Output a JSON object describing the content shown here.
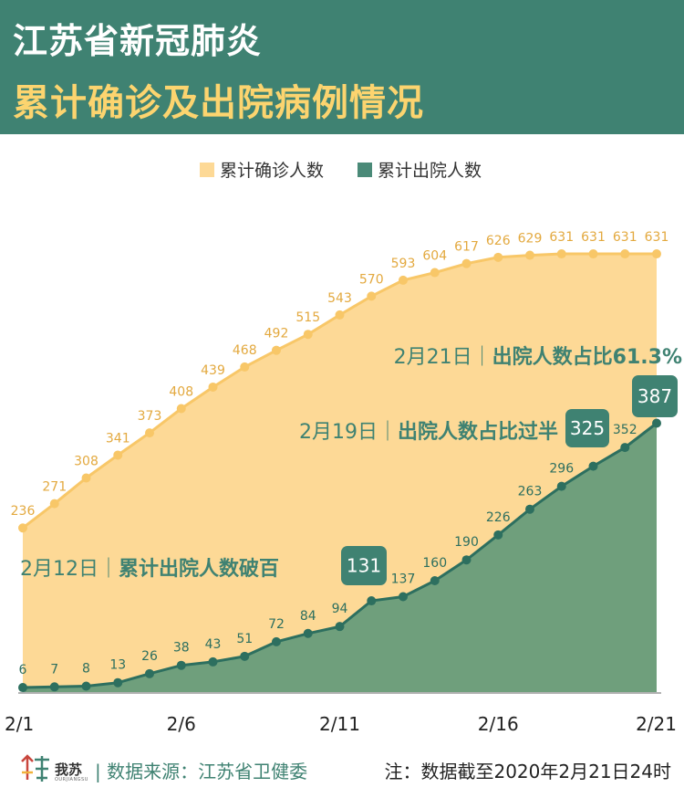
{
  "header": {
    "title_line1": "江苏省新冠肺炎",
    "title_line2": "累计确诊及出院病例情况"
  },
  "colors": {
    "header_bg": "#3f8272",
    "confirmed_fill": "#fdd996",
    "confirmed_line": "#f8c768",
    "confirmed_label": "#e3a93f",
    "discharged_fill": "#6f9f7c",
    "discharged_line": "#2d6f5f",
    "annotation_text": "#3f8272"
  },
  "chart_data": {
    "type": "area",
    "x": [
      "2/1",
      "2/2",
      "2/3",
      "2/4",
      "2/5",
      "2/6",
      "2/7",
      "2/8",
      "2/9",
      "2/10",
      "2/11",
      "2/12",
      "2/13",
      "2/14",
      "2/15",
      "2/16",
      "2/17",
      "2/18",
      "2/19",
      "2/20",
      "2/21"
    ],
    "xticks": [
      "2/1",
      "2/6",
      "2/11",
      "2/16",
      "2/21"
    ],
    "series": [
      {
        "name": "累计确诊人数",
        "values": [
          236,
          271,
          308,
          341,
          373,
          408,
          439,
          468,
          492,
          515,
          543,
          570,
          593,
          604,
          617,
          626,
          629,
          631,
          631,
          631,
          631
        ]
      },
      {
        "name": "累计出院人数",
        "values": [
          6,
          7,
          8,
          13,
          26,
          38,
          43,
          51,
          72,
          84,
          94,
          131,
          137,
          160,
          190,
          226,
          263,
          296,
          325,
          352,
          387
        ]
      }
    ],
    "legend_position": "top-center",
    "grid": false,
    "annotations": [
      {
        "date": "2/12",
        "label": "2月12日",
        "text": "累计出院人数破百",
        "value": "131"
      },
      {
        "date": "2/19",
        "label": "2月19日",
        "text": "出院人数占比过半",
        "value": "325"
      },
      {
        "date": "2/21",
        "label": "2月21日",
        "text": "出院人数占比61.3%",
        "value": "387"
      }
    ]
  },
  "footer": {
    "brand": "我苏",
    "brand_sub": "OURJIANGSU",
    "source": "| 数据来源：江苏省卫健委",
    "note": "注：数据截至2020年2月21日24时"
  }
}
